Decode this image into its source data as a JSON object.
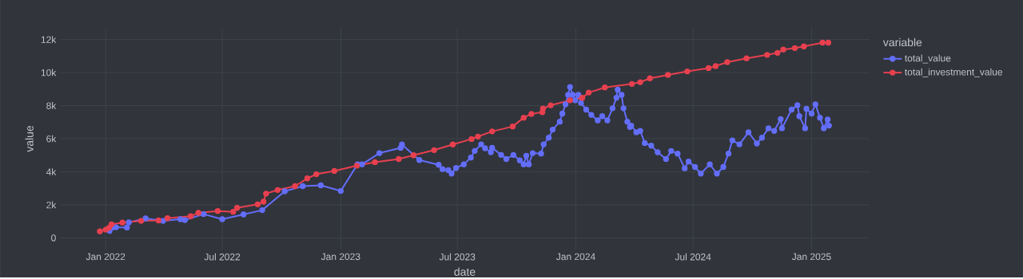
{
  "chart_data": {
    "type": "line",
    "xlabel": "date",
    "ylabel": "value",
    "legend_title": "variable",
    "legend": "top right",
    "grid": true,
    "marker": "circle",
    "line_style": "solid",
    "xlim": [
      "2021-10-22",
      "2025-04-01"
    ],
    "ylim": [
      -700,
      12700
    ],
    "xticks": [
      {
        "value": "2022-01-01",
        "label": "Jan 2022"
      },
      {
        "value": "2022-07-01",
        "label": "Jul 2022"
      },
      {
        "value": "2023-01-01",
        "label": "Jan 2023"
      },
      {
        "value": "2023-07-01",
        "label": "Jul 2023"
      },
      {
        "value": "2024-01-01",
        "label": "Jan 2024"
      },
      {
        "value": "2024-07-01",
        "label": "Jul 2024"
      },
      {
        "value": "2025-01-01",
        "label": "Jan 2025"
      }
    ],
    "yticks": [
      0,
      {
        "value": 2000,
        "label": "2k"
      },
      {
        "value": 4000,
        "label": "4k"
      },
      {
        "value": 6000,
        "label": "6k"
      },
      {
        "value": 8000,
        "label": "8k"
      },
      {
        "value": 10000,
        "label": "10k"
      },
      {
        "value": 12000,
        "label": "12k"
      }
    ],
    "series": [
      {
        "name": "total_value",
        "color": "#636efa",
        "x": [
          "2022-01-07",
          "2022-01-11",
          "2022-01-17",
          "2022-02-03",
          "2022-02-06",
          "2022-03-04",
          "2022-03-31",
          "2022-04-27",
          "2022-05-04",
          "2022-06-02",
          "2022-07-01",
          "2022-08-03",
          "2022-09-01",
          "2022-10-06",
          "2022-11-03",
          "2022-12-01",
          "2023-01-01",
          "2023-01-27",
          "2023-02-03",
          "2023-03-02",
          "2023-04-04",
          "2023-04-06",
          "2023-05-03",
          "2023-06-02",
          "2023-06-08",
          "2023-06-17",
          "2023-06-22",
          "2023-06-29",
          "2023-07-11",
          "2023-07-22",
          "2023-07-28",
          "2023-08-07",
          "2023-08-13",
          "2023-08-22",
          "2023-08-24",
          "2023-09-07",
          "2023-09-15",
          "2023-09-26",
          "2023-10-06",
          "2023-10-12",
          "2023-10-16",
          "2023-10-20",
          "2023-10-26",
          "2023-11-08",
          "2023-11-12",
          "2023-11-20",
          "2023-11-26",
          "2023-12-07",
          "2023-12-11",
          "2023-12-16",
          "2023-12-20",
          "2023-12-23",
          "2023-12-27",
          "2023-12-31",
          "2024-01-05",
          "2024-01-09",
          "2024-01-17",
          "2024-01-25",
          "2024-02-04",
          "2024-02-11",
          "2024-02-19",
          "2024-02-27",
          "2024-03-04",
          "2024-03-06",
          "2024-03-12",
          "2024-03-15",
          "2024-03-21",
          "2024-03-25",
          "2024-03-27",
          "2024-04-04",
          "2024-04-10",
          "2024-04-17",
          "2024-04-27",
          "2024-05-07",
          "2024-05-20",
          "2024-05-28",
          "2024-06-07",
          "2024-06-18",
          "2024-06-24",
          "2024-07-04",
          "2024-07-13",
          "2024-07-27",
          "2024-08-07",
          "2024-08-17",
          "2024-08-25",
          "2024-08-31",
          "2024-09-11",
          "2024-09-25",
          "2024-10-08",
          "2024-10-16",
          "2024-10-26",
          "2024-11-04",
          "2024-11-14",
          "2024-11-16",
          "2024-12-01",
          "2024-12-10",
          "2024-12-13",
          "2024-12-22",
          "2024-12-24",
          "2025-01-01",
          "2025-01-07",
          "2025-01-14",
          "2025-01-20",
          "2025-01-26",
          "2025-01-28"
        ],
        "values": [
          420,
          630,
          645,
          630,
          940,
          1180,
          1030,
          1130,
          1080,
          1440,
          1130,
          1420,
          1680,
          2820,
          3130,
          3180,
          2840,
          4450,
          4450,
          5130,
          5450,
          5650,
          4710,
          4420,
          4160,
          4100,
          3890,
          4230,
          4450,
          4860,
          5260,
          5660,
          5420,
          5180,
          5450,
          5020,
          4770,
          5020,
          4690,
          4450,
          4970,
          4450,
          5130,
          5100,
          5660,
          6060,
          6550,
          7030,
          7520,
          8080,
          8650,
          9130,
          8650,
          8320,
          8650,
          8160,
          7760,
          7440,
          7110,
          7360,
          7110,
          7840,
          8480,
          8970,
          8650,
          7840,
          7030,
          6710,
          6790,
          6390,
          6470,
          5740,
          5580,
          5180,
          4770,
          5260,
          5100,
          4210,
          4620,
          4290,
          3890,
          4450,
          3890,
          4290,
          5100,
          5900,
          5660,
          6390,
          5710,
          6060,
          6630,
          6470,
          7190,
          6630,
          7760,
          8030,
          7360,
          6630,
          7810,
          7520,
          8080,
          7270,
          6630,
          7160,
          6790
        ]
      },
      {
        "name": "total_investment_value",
        "color": "#e8404f",
        "x": [
          "2021-12-23",
          "2022-01-01",
          "2022-01-06",
          "2022-01-10",
          "2022-01-27",
          "2022-02-25",
          "2022-03-24",
          "2022-04-07",
          "2022-05-13",
          "2022-05-25",
          "2022-06-24",
          "2022-07-18",
          "2022-07-24",
          "2022-08-25",
          "2022-09-03",
          "2022-09-07",
          "2022-09-25",
          "2022-10-22",
          "2022-11-10",
          "2022-11-24",
          "2022-12-22",
          "2023-01-26",
          "2023-02-23",
          "2023-04-01",
          "2023-04-24",
          "2023-05-26",
          "2023-06-24",
          "2023-07-23",
          "2023-08-02",
          "2023-08-24",
          "2023-09-25",
          "2023-10-12",
          "2023-10-24",
          "2023-11-10",
          "2023-11-11",
          "2023-11-23",
          "2023-12-23",
          "2024-01-11",
          "2024-01-21",
          "2024-02-15",
          "2024-03-28",
          "2024-04-10",
          "2024-04-25",
          "2024-05-23",
          "2024-06-22",
          "2024-07-25",
          "2024-08-05",
          "2024-08-23",
          "2024-09-22",
          "2024-10-24",
          "2024-11-09",
          "2024-11-18",
          "2024-12-06",
          "2024-12-20",
          "2025-01-18",
          "2025-01-27"
        ],
        "values": [
          400,
          500,
          610,
          820,
          930,
          1030,
          1060,
          1190,
          1310,
          1520,
          1630,
          1580,
          1820,
          2030,
          2190,
          2680,
          2900,
          3130,
          3600,
          3850,
          4050,
          4370,
          4580,
          4770,
          5000,
          5310,
          5650,
          5980,
          6130,
          6440,
          6740,
          7270,
          7500,
          7600,
          7820,
          8020,
          8320,
          8470,
          8790,
          9100,
          9310,
          9420,
          9650,
          9860,
          10070,
          10270,
          10390,
          10630,
          10860,
          11070,
          11190,
          11390,
          11480,
          11580,
          11810,
          11810
        ]
      }
    ]
  }
}
